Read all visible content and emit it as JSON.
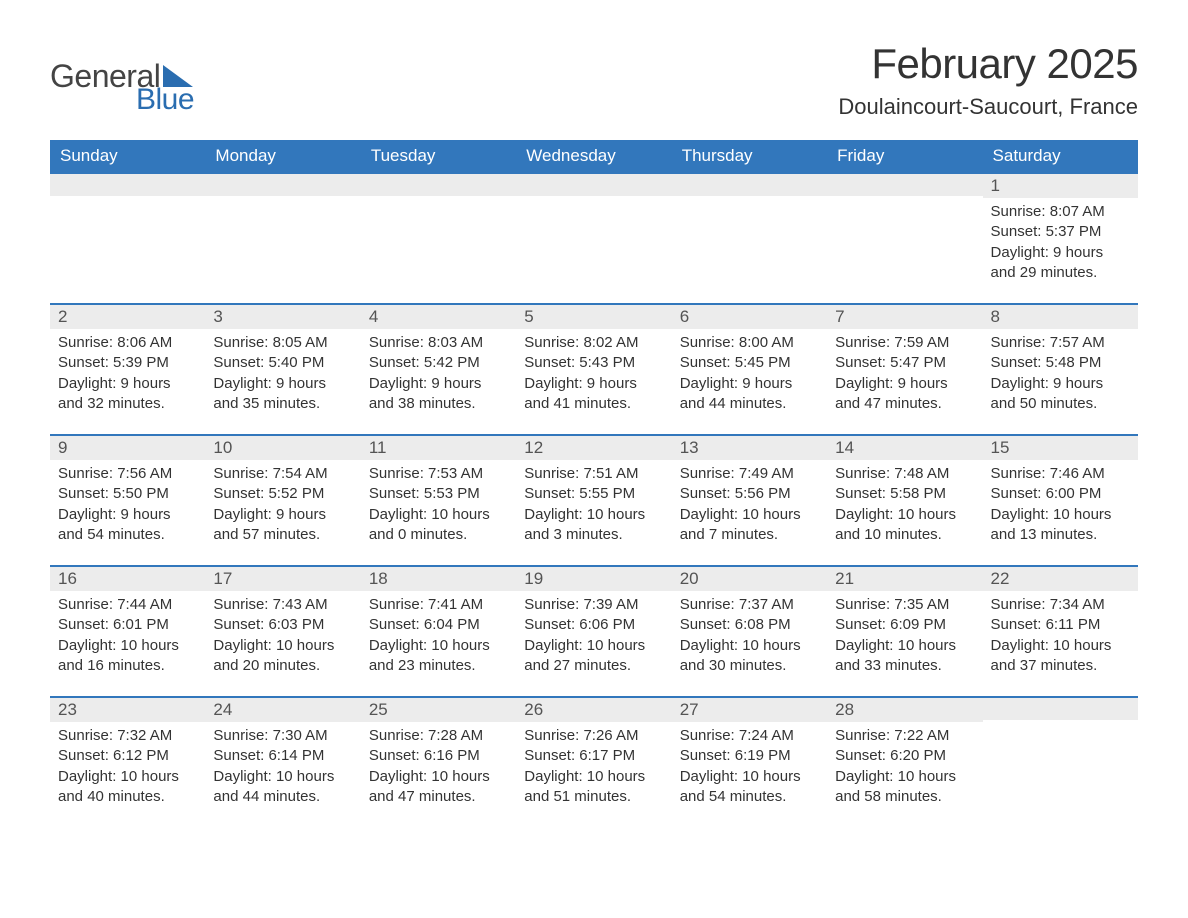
{
  "brand": {
    "general": "General",
    "blue": "Blue"
  },
  "header": {
    "month_title": "February 2025",
    "location": "Doulaincourt-Saucourt, France"
  },
  "colors": {
    "header_bg": "#3277bc",
    "header_text": "#ffffff",
    "band_bg": "#ececec",
    "band_text": "#545454",
    "text": "#333333",
    "rule": "#3277bc",
    "logo_accent": "#2a6db0"
  },
  "fonts": {
    "body_family": "Segoe UI, Arial, sans-serif",
    "title_size_pt": 32,
    "location_size_pt": 17,
    "dayhead_size_pt": 13,
    "cell_size_pt": 11
  },
  "calendar": {
    "day_headers": [
      "Sunday",
      "Monday",
      "Tuesday",
      "Wednesday",
      "Thursday",
      "Friday",
      "Saturday"
    ],
    "weeks": [
      [
        null,
        null,
        null,
        null,
        null,
        null,
        {
          "n": "1",
          "sunrise": "8:07 AM",
          "sunset": "5:37 PM",
          "day_h": "9",
          "day_m": "29"
        }
      ],
      [
        {
          "n": "2",
          "sunrise": "8:06 AM",
          "sunset": "5:39 PM",
          "day_h": "9",
          "day_m": "32"
        },
        {
          "n": "3",
          "sunrise": "8:05 AM",
          "sunset": "5:40 PM",
          "day_h": "9",
          "day_m": "35"
        },
        {
          "n": "4",
          "sunrise": "8:03 AM",
          "sunset": "5:42 PM",
          "day_h": "9",
          "day_m": "38"
        },
        {
          "n": "5",
          "sunrise": "8:02 AM",
          "sunset": "5:43 PM",
          "day_h": "9",
          "day_m": "41"
        },
        {
          "n": "6",
          "sunrise": "8:00 AM",
          "sunset": "5:45 PM",
          "day_h": "9",
          "day_m": "44"
        },
        {
          "n": "7",
          "sunrise": "7:59 AM",
          "sunset": "5:47 PM",
          "day_h": "9",
          "day_m": "47"
        },
        {
          "n": "8",
          "sunrise": "7:57 AM",
          "sunset": "5:48 PM",
          "day_h": "9",
          "day_m": "50"
        }
      ],
      [
        {
          "n": "9",
          "sunrise": "7:56 AM",
          "sunset": "5:50 PM",
          "day_h": "9",
          "day_m": "54"
        },
        {
          "n": "10",
          "sunrise": "7:54 AM",
          "sunset": "5:52 PM",
          "day_h": "9",
          "day_m": "57"
        },
        {
          "n": "11",
          "sunrise": "7:53 AM",
          "sunset": "5:53 PM",
          "day_h": "10",
          "day_m": "0"
        },
        {
          "n": "12",
          "sunrise": "7:51 AM",
          "sunset": "5:55 PM",
          "day_h": "10",
          "day_m": "3"
        },
        {
          "n": "13",
          "sunrise": "7:49 AM",
          "sunset": "5:56 PM",
          "day_h": "10",
          "day_m": "7"
        },
        {
          "n": "14",
          "sunrise": "7:48 AM",
          "sunset": "5:58 PM",
          "day_h": "10",
          "day_m": "10"
        },
        {
          "n": "15",
          "sunrise": "7:46 AM",
          "sunset": "6:00 PM",
          "day_h": "10",
          "day_m": "13"
        }
      ],
      [
        {
          "n": "16",
          "sunrise": "7:44 AM",
          "sunset": "6:01 PM",
          "day_h": "10",
          "day_m": "16"
        },
        {
          "n": "17",
          "sunrise": "7:43 AM",
          "sunset": "6:03 PM",
          "day_h": "10",
          "day_m": "20"
        },
        {
          "n": "18",
          "sunrise": "7:41 AM",
          "sunset": "6:04 PM",
          "day_h": "10",
          "day_m": "23"
        },
        {
          "n": "19",
          "sunrise": "7:39 AM",
          "sunset": "6:06 PM",
          "day_h": "10",
          "day_m": "27"
        },
        {
          "n": "20",
          "sunrise": "7:37 AM",
          "sunset": "6:08 PM",
          "day_h": "10",
          "day_m": "30"
        },
        {
          "n": "21",
          "sunrise": "7:35 AM",
          "sunset": "6:09 PM",
          "day_h": "10",
          "day_m": "33"
        },
        {
          "n": "22",
          "sunrise": "7:34 AM",
          "sunset": "6:11 PM",
          "day_h": "10",
          "day_m": "37"
        }
      ],
      [
        {
          "n": "23",
          "sunrise": "7:32 AM",
          "sunset": "6:12 PM",
          "day_h": "10",
          "day_m": "40"
        },
        {
          "n": "24",
          "sunrise": "7:30 AM",
          "sunset": "6:14 PM",
          "day_h": "10",
          "day_m": "44"
        },
        {
          "n": "25",
          "sunrise": "7:28 AM",
          "sunset": "6:16 PM",
          "day_h": "10",
          "day_m": "47"
        },
        {
          "n": "26",
          "sunrise": "7:26 AM",
          "sunset": "6:17 PM",
          "day_h": "10",
          "day_m": "51"
        },
        {
          "n": "27",
          "sunrise": "7:24 AM",
          "sunset": "6:19 PM",
          "day_h": "10",
          "day_m": "54"
        },
        {
          "n": "28",
          "sunrise": "7:22 AM",
          "sunset": "6:20 PM",
          "day_h": "10",
          "day_m": "58"
        },
        null
      ]
    ]
  },
  "labels": {
    "sunrise_prefix": "Sunrise: ",
    "sunset_prefix": "Sunset: ",
    "daylight_prefix": "Daylight: ",
    "hours_word": " hours",
    "and_word": "and ",
    "minutes_word": " minutes."
  }
}
